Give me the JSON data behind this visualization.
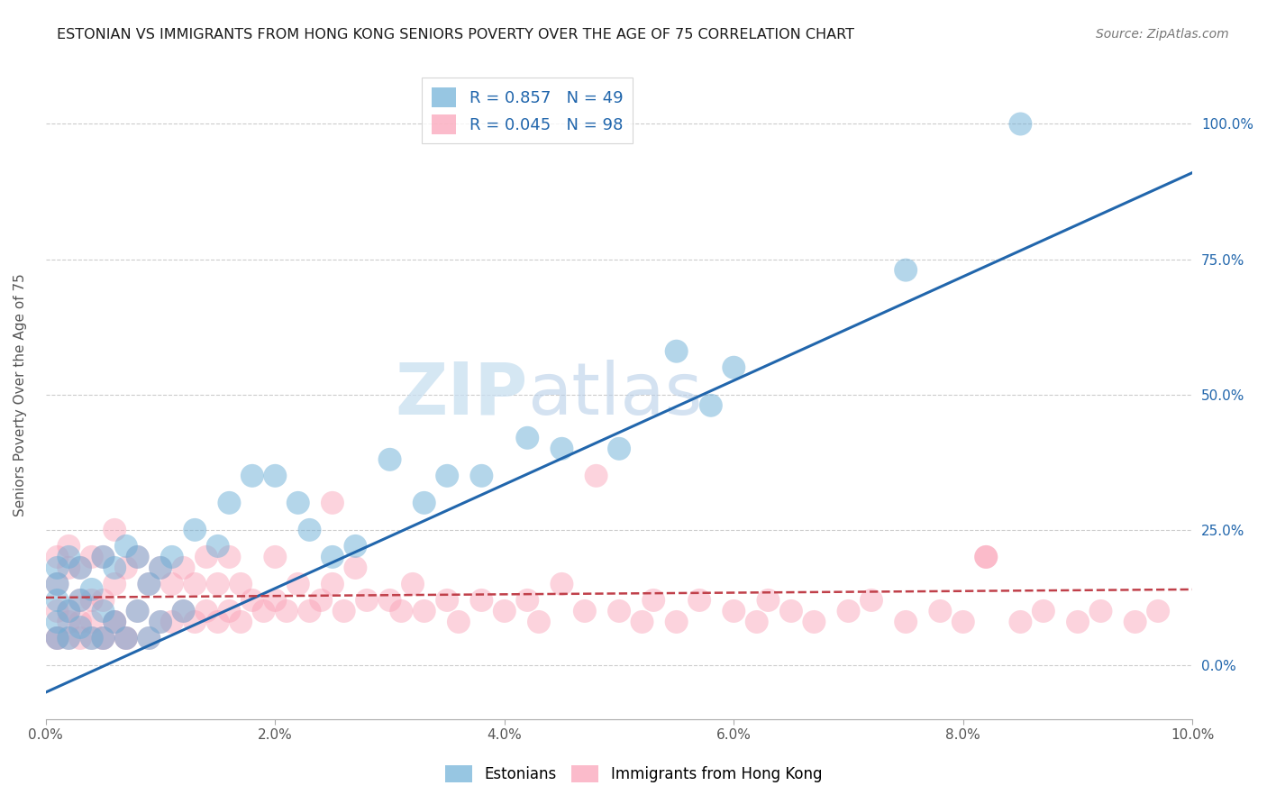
{
  "title": "ESTONIAN VS IMMIGRANTS FROM HONG KONG SENIORS POVERTY OVER THE AGE OF 75 CORRELATION CHART",
  "source": "Source: ZipAtlas.com",
  "ylabel": "Seniors Poverty Over the Age of 75",
  "xlim": [
    0.0,
    0.1
  ],
  "ylim": [
    -0.1,
    1.1
  ],
  "blue_color": "#6baed6",
  "pink_color": "#fa9fb5",
  "blue_line_color": "#2166ac",
  "pink_line_color": "#c0404a",
  "legend_blue_label": "R = 0.857   N = 49",
  "legend_pink_label": "R = 0.045   N = 98",
  "watermark_zip": "ZIP",
  "watermark_atlas": "atlas",
  "blue_line_x": [
    0.0,
    0.1
  ],
  "blue_line_y": [
    -0.05,
    0.91
  ],
  "pink_line_x": [
    0.0,
    0.1
  ],
  "pink_line_y": [
    0.125,
    0.14
  ],
  "blue_x": [
    0.001,
    0.001,
    0.001,
    0.001,
    0.001,
    0.002,
    0.002,
    0.002,
    0.003,
    0.003,
    0.003,
    0.004,
    0.004,
    0.005,
    0.005,
    0.005,
    0.006,
    0.006,
    0.007,
    0.007,
    0.008,
    0.008,
    0.009,
    0.009,
    0.01,
    0.01,
    0.011,
    0.012,
    0.013,
    0.015,
    0.016,
    0.018,
    0.02,
    0.022,
    0.023,
    0.025,
    0.027,
    0.03,
    0.033,
    0.035,
    0.038,
    0.042,
    0.045,
    0.05,
    0.055,
    0.058,
    0.06,
    0.075,
    0.085
  ],
  "blue_y": [
    0.05,
    0.08,
    0.12,
    0.15,
    0.18,
    0.05,
    0.1,
    0.2,
    0.07,
    0.12,
    0.18,
    0.05,
    0.14,
    0.05,
    0.1,
    0.2,
    0.08,
    0.18,
    0.05,
    0.22,
    0.1,
    0.2,
    0.05,
    0.15,
    0.08,
    0.18,
    0.2,
    0.1,
    0.25,
    0.22,
    0.3,
    0.35,
    0.35,
    0.3,
    0.25,
    0.2,
    0.22,
    0.38,
    0.3,
    0.35,
    0.35,
    0.42,
    0.4,
    0.4,
    0.58,
    0.48,
    0.55,
    0.73,
    1.0
  ],
  "pink_x": [
    0.001,
    0.001,
    0.001,
    0.001,
    0.002,
    0.002,
    0.002,
    0.002,
    0.003,
    0.003,
    0.003,
    0.004,
    0.004,
    0.004,
    0.005,
    0.005,
    0.005,
    0.006,
    0.006,
    0.006,
    0.007,
    0.007,
    0.008,
    0.008,
    0.009,
    0.009,
    0.01,
    0.01,
    0.011,
    0.011,
    0.012,
    0.012,
    0.013,
    0.013,
    0.014,
    0.014,
    0.015,
    0.015,
    0.016,
    0.016,
    0.017,
    0.017,
    0.018,
    0.019,
    0.02,
    0.02,
    0.021,
    0.022,
    0.023,
    0.024,
    0.025,
    0.026,
    0.027,
    0.028,
    0.03,
    0.031,
    0.032,
    0.033,
    0.035,
    0.036,
    0.038,
    0.04,
    0.042,
    0.043,
    0.045,
    0.047,
    0.048,
    0.05,
    0.052,
    0.053,
    0.055,
    0.057,
    0.06,
    0.062,
    0.063,
    0.065,
    0.067,
    0.07,
    0.072,
    0.075,
    0.078,
    0.08,
    0.082,
    0.085,
    0.087,
    0.09,
    0.092,
    0.095,
    0.097,
    0.001,
    0.002,
    0.003,
    0.004,
    0.005,
    0.006,
    0.007,
    0.025,
    0.082
  ],
  "pink_y": [
    0.05,
    0.1,
    0.15,
    0.2,
    0.05,
    0.1,
    0.18,
    0.22,
    0.08,
    0.12,
    0.18,
    0.05,
    0.12,
    0.2,
    0.05,
    0.12,
    0.2,
    0.08,
    0.15,
    0.25,
    0.05,
    0.18,
    0.1,
    0.2,
    0.05,
    0.15,
    0.08,
    0.18,
    0.08,
    0.15,
    0.1,
    0.18,
    0.08,
    0.15,
    0.1,
    0.2,
    0.08,
    0.15,
    0.1,
    0.2,
    0.08,
    0.15,
    0.12,
    0.1,
    0.12,
    0.2,
    0.1,
    0.15,
    0.1,
    0.12,
    0.15,
    0.1,
    0.18,
    0.12,
    0.12,
    0.1,
    0.15,
    0.1,
    0.12,
    0.08,
    0.12,
    0.1,
    0.12,
    0.08,
    0.15,
    0.1,
    0.35,
    0.1,
    0.08,
    0.12,
    0.08,
    0.12,
    0.1,
    0.08,
    0.12,
    0.1,
    0.08,
    0.1,
    0.12,
    0.08,
    0.1,
    0.08,
    0.2,
    0.08,
    0.1,
    0.08,
    0.1,
    0.08,
    0.1,
    0.05,
    0.08,
    0.05,
    0.08,
    0.05,
    0.08,
    0.05,
    0.3,
    0.2
  ]
}
